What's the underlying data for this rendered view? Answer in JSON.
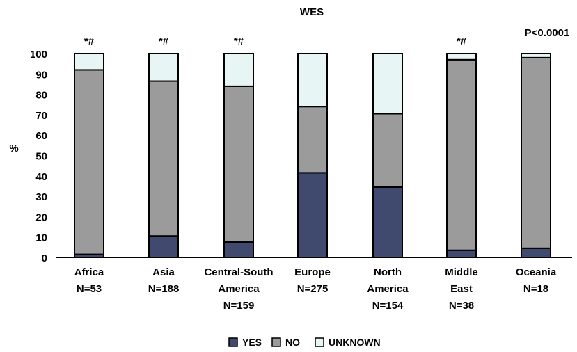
{
  "chart_data": {
    "type": "bar",
    "stacked": true,
    "title": "WES",
    "ylabel": "%",
    "xlabel": "",
    "ylim": [
      0,
      100
    ],
    "yticks": [
      0,
      10,
      20,
      30,
      40,
      50,
      60,
      70,
      80,
      90,
      100
    ],
    "grid": false,
    "legend_position": "bottom",
    "pvalue_text": "P<0.0001",
    "categories": [
      [
        "Africa",
        "N=53"
      ],
      [
        "Asia",
        "N=188"
      ],
      [
        "Central-South",
        "America",
        "N=159"
      ],
      [
        "Europe",
        "N=275"
      ],
      [
        "North",
        "America",
        "N=154"
      ],
      [
        "Middle",
        "East",
        "N=38"
      ],
      [
        "Oceania",
        "N=18"
      ]
    ],
    "annotations": [
      "*#",
      "*#",
      "*#",
      "",
      "",
      "*#",
      ""
    ],
    "series": [
      {
        "name": "YES",
        "color": "#3f4a6e",
        "values": [
          1.5,
          10.5,
          7.5,
          41.5,
          34.5,
          3.5,
          4.5
        ]
      },
      {
        "name": "NO",
        "color": "#9b9b9b",
        "values": [
          90.5,
          76,
          76.5,
          32.5,
          36,
          93.5,
          93.5
        ]
      },
      {
        "name": "UNKNOWN",
        "color": "#e8f5f5",
        "values": [
          8,
          13.5,
          16,
          26,
          29.5,
          3,
          2
        ]
      }
    ]
  }
}
